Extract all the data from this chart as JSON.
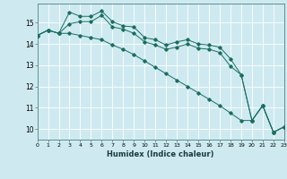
{
  "xlabel": "Humidex (Indice chaleur)",
  "ylabel": "",
  "background_color": "#ceeaf0",
  "line_color": "#1a6e60",
  "grid_color": "#ffffff",
  "series": [
    {
      "x": [
        0,
        1,
        2,
        3,
        4,
        5,
        6,
        7,
        8,
        9,
        10,
        11,
        12,
        13,
        14,
        15,
        16,
        17,
        18,
        19,
        20,
        21,
        22,
        23
      ],
      "y": [
        14.4,
        14.65,
        14.5,
        15.5,
        15.3,
        15.3,
        15.55,
        15.05,
        14.85,
        14.8,
        14.3,
        14.2,
        13.95,
        14.1,
        14.2,
        14.0,
        13.95,
        13.85,
        13.3,
        12.55,
        10.4,
        11.1,
        9.85,
        10.1
      ]
    },
    {
      "x": [
        0,
        1,
        2,
        3,
        4,
        5,
        6,
        7,
        8,
        9,
        10,
        11,
        12,
        13,
        14,
        15,
        16,
        17,
        18,
        19,
        20,
        21,
        22,
        23
      ],
      "y": [
        14.4,
        14.65,
        14.5,
        14.95,
        15.05,
        15.05,
        15.35,
        14.8,
        14.7,
        14.5,
        14.1,
        13.95,
        13.75,
        13.85,
        14.0,
        13.8,
        13.75,
        13.6,
        12.95,
        12.55,
        10.4,
        11.1,
        9.85,
        10.1
      ]
    },
    {
      "x": [
        0,
        1,
        2,
        3,
        4,
        5,
        6,
        7,
        8,
        9,
        10,
        11,
        12,
        13,
        14,
        15,
        16,
        17,
        18,
        19,
        20,
        21,
        22,
        23
      ],
      "y": [
        14.4,
        14.65,
        14.5,
        14.5,
        14.4,
        14.3,
        14.2,
        13.95,
        13.75,
        13.5,
        13.2,
        12.9,
        12.6,
        12.3,
        12.0,
        11.7,
        11.4,
        11.1,
        10.75,
        10.4,
        10.4,
        11.1,
        9.85,
        10.1
      ]
    }
  ],
  "xlim": [
    0,
    23
  ],
  "ylim": [
    9.5,
    15.9
  ],
  "yticks": [
    10,
    11,
    12,
    13,
    14,
    15
  ],
  "xticks": [
    0,
    1,
    2,
    3,
    4,
    5,
    6,
    7,
    8,
    9,
    10,
    11,
    12,
    13,
    14,
    15,
    16,
    17,
    18,
    19,
    20,
    21,
    22,
    23
  ],
  "figsize": [
    3.2,
    2.0
  ],
  "dpi": 100
}
